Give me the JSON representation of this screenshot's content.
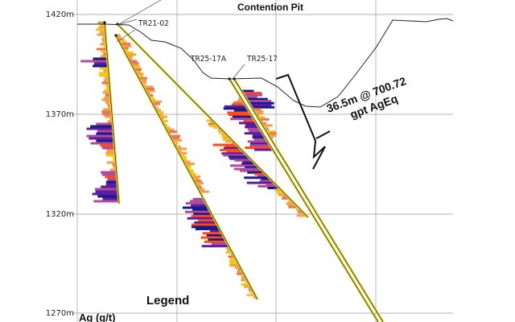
{
  "title": "Contention Pit",
  "elevation_labels": [
    "1420m",
    "1370m",
    "1320m",
    "1270m"
  ],
  "drill_holes": [
    {
      "name": "TR21-02"
    },
    {
      "name": "TR25-17A"
    },
    {
      "name": "TR25-17"
    }
  ],
  "intercept": {
    "line1": "36.5m @ 700.72",
    "line2": "gpt AgEq"
  },
  "legend": {
    "title": "Legend",
    "subtitle": "Ag (g/t)"
  },
  "colors": {
    "low": "#f5c518",
    "mid_low": "#f5a043",
    "mid": "#e8745a",
    "mid_high": "#b04a9a",
    "high": "#5a1fa0",
    "very_high": "#1a1a8a",
    "hot": "#ff4a1a",
    "trace": "#e8d640",
    "topography": "#222222",
    "grid": "#9a9a9a"
  }
}
